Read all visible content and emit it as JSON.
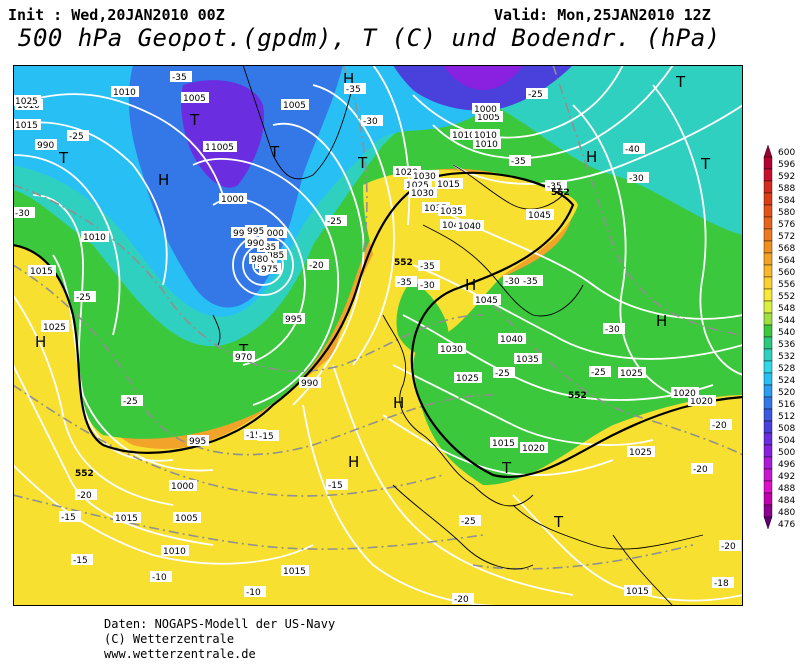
{
  "header": {
    "init": "Init : Wed,20JAN2010 00Z",
    "valid": "Valid: Mon,25JAN2010 12Z",
    "title": "500 hPa Geopot.(gpdm), T (C) und Bodendr. (hPa)"
  },
  "credits": {
    "line1": "Daten: NOGAPS-Modell der US-Navy",
    "line2": "(C) Wetterzentrale",
    "line3": "www.wetterzentrale.de"
  },
  "colorbar": {
    "levels": [
      "600",
      "596",
      "592",
      "588",
      "584",
      "580",
      "576",
      "572",
      "568",
      "564",
      "560",
      "556",
      "552",
      "548",
      "544",
      "540",
      "536",
      "532",
      "528",
      "524",
      "520",
      "516",
      "512",
      "508",
      "504",
      "500",
      "496",
      "492",
      "488",
      "484",
      "480",
      "476"
    ],
    "colors": [
      "#9a0030",
      "#b40030",
      "#c8102e",
      "#d42a20",
      "#dc3c16",
      "#e2521a",
      "#e8641c",
      "#ec7a1e",
      "#f08e20",
      "#f4a224",
      "#f8b82a",
      "#fcd030",
      "#f8e838",
      "#d8f040",
      "#9ee040",
      "#3cc83c",
      "#2cc880",
      "#30d0c0",
      "#30d8e8",
      "#28c0f4",
      "#2c9cf0",
      "#3478e8",
      "#3c58e0",
      "#4a40dc",
      "#6a2ee0",
      "#8a20e0",
      "#aa1cd8",
      "#c818d0",
      "#e010c8",
      "#c000b0",
      "#8c0090",
      "#600070"
    ]
  },
  "map": {
    "pressure_labels": [
      "1010",
      "1005",
      "1005",
      "1005",
      "990",
      "985",
      "980",
      "995",
      "1000",
      "995",
      "990",
      "985",
      "980",
      "975",
      "970",
      "990",
      "995",
      "1000",
      "1005",
      "1010",
      "1010",
      "1015",
      "1020",
      "1025",
      "1030",
      "1035",
      "1040",
      "1045",
      "1045",
      "1040",
      "1035",
      "1030",
      "1025",
      "1020",
      "1015",
      "1010",
      "1005",
      "1000",
      "1015",
      "1020",
      "1025",
      "1030",
      "1035",
      "1040",
      "1025",
      "1020",
      "1015",
      "1020",
      "1025",
      "1015",
      "1010",
      "1015",
      "1025",
      "1040",
      "1015",
      "1010",
      "1010",
      "1005",
      "1000",
      "995",
      "990"
    ],
    "temperature_labels": [
      "-35",
      "-35",
      "-30",
      "-25",
      "-25",
      "-20",
      "-25",
      "-30",
      "-40",
      "-35",
      "-30",
      "-35",
      "-35",
      "-30",
      "-35",
      "-30",
      "-35",
      "-30",
      "-25",
      "-25",
      "-20",
      "-20",
      "-15",
      "-15",
      "-15",
      "-25",
      "-20",
      "-15",
      "-10",
      "-10",
      "-20",
      "-25",
      "-20",
      "-18",
      "-15",
      "-25"
    ],
    "highs": [
      "H",
      "H",
      "H",
      "H",
      "H",
      "H",
      "H",
      "H"
    ],
    "lows": [
      "T",
      "T",
      "T",
      "T",
      "T",
      "T",
      "T",
      "T",
      "T"
    ],
    "contour_labels": [
      "552",
      "552",
      "552",
      "552"
    ]
  }
}
